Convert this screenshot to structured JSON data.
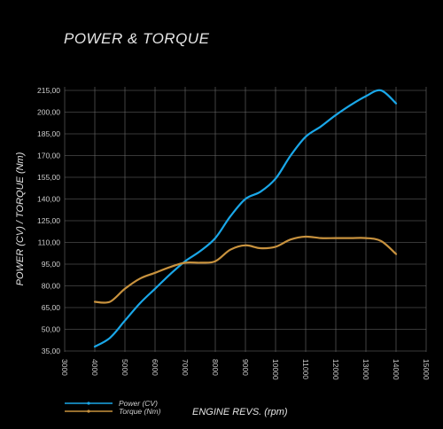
{
  "chart_data": {
    "type": "line",
    "title": "POWER & TORQUE",
    "xlabel": "ENGINE REVS. (rpm)",
    "ylabel": "POWER (CV) / TORQUE (Nm)",
    "xlim": [
      3000,
      15000
    ],
    "ylim": [
      35,
      220
    ],
    "x_ticks": [
      "3000",
      "4000",
      "5000",
      "6000",
      "7000",
      "8000",
      "9000",
      "10000",
      "11000",
      "12000",
      "13000",
      "14000",
      "15000"
    ],
    "y_ticks": [
      "35,00",
      "50,00",
      "65,00",
      "80,00",
      "95,00",
      "110,00",
      "125,00",
      "140,00",
      "155,00",
      "170,00",
      "185,00",
      "200,00",
      "215,00"
    ],
    "grid": true,
    "legend_position": "bottom-left",
    "series": [
      {
        "name": "Power (CV)",
        "color": "#1aa7e8",
        "points": [
          [
            4000,
            38
          ],
          [
            4500,
            44
          ],
          [
            5000,
            56
          ],
          [
            5500,
            68
          ],
          [
            6000,
            78
          ],
          [
            6500,
            88
          ],
          [
            7000,
            97
          ],
          [
            7500,
            104
          ],
          [
            8000,
            113
          ],
          [
            8500,
            128
          ],
          [
            9000,
            140
          ],
          [
            9500,
            145
          ],
          [
            10000,
            154
          ],
          [
            10500,
            170
          ],
          [
            11000,
            183
          ],
          [
            11500,
            190
          ],
          [
            12000,
            198
          ],
          [
            12500,
            205
          ],
          [
            13000,
            211
          ],
          [
            13500,
            215
          ],
          [
            14000,
            206
          ]
        ]
      },
      {
        "name": "Torque (Nm)",
        "color": "#c8923e",
        "points": [
          [
            4000,
            69
          ],
          [
            4500,
            69
          ],
          [
            5000,
            78
          ],
          [
            5500,
            85
          ],
          [
            6000,
            89
          ],
          [
            6500,
            93
          ],
          [
            7000,
            96
          ],
          [
            7500,
            96
          ],
          [
            8000,
            97
          ],
          [
            8500,
            105
          ],
          [
            9000,
            108
          ],
          [
            9500,
            106
          ],
          [
            10000,
            107
          ],
          [
            10500,
            112
          ],
          [
            11000,
            114
          ],
          [
            11500,
            113
          ],
          [
            12000,
            113
          ],
          [
            12500,
            113
          ],
          [
            13000,
            113
          ],
          [
            13500,
            111
          ],
          [
            14000,
            102
          ]
        ]
      }
    ]
  }
}
